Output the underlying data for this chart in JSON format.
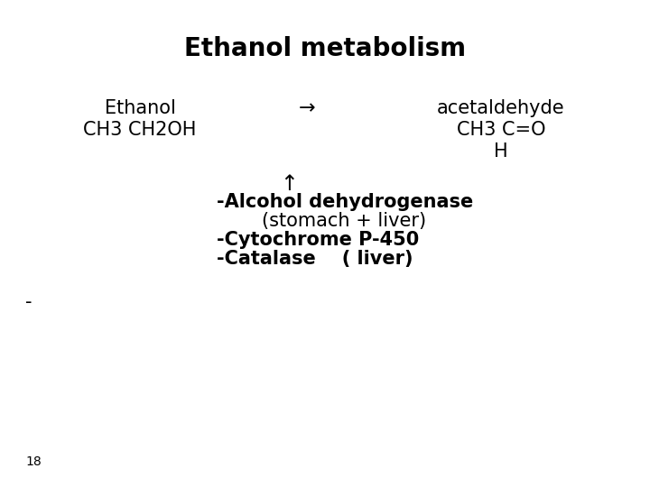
{
  "title": "Ethanol metabolism",
  "title_fontsize": 20,
  "bg_color": "#ffffff",
  "text_color": "#000000",
  "ethanol_label": "Ethanol",
  "ethanol_formula": "CH3 CH2OH",
  "arrow": "→",
  "acetaldehyde_label": "acetaldehyde",
  "acetaldehyde_formula1": "CH3 C=O",
  "acetaldehyde_formula2": "H",
  "up_arrow": "↑",
  "line1": "-Alcohol dehydrogenase",
  "line2": "(stomach + liver)",
  "line3": "-Cytochrome P-450",
  "line4": "-Catalase    ( liver)",
  "dash": "-",
  "page_num": "18",
  "font_size_main": 15,
  "font_size_small": 10
}
